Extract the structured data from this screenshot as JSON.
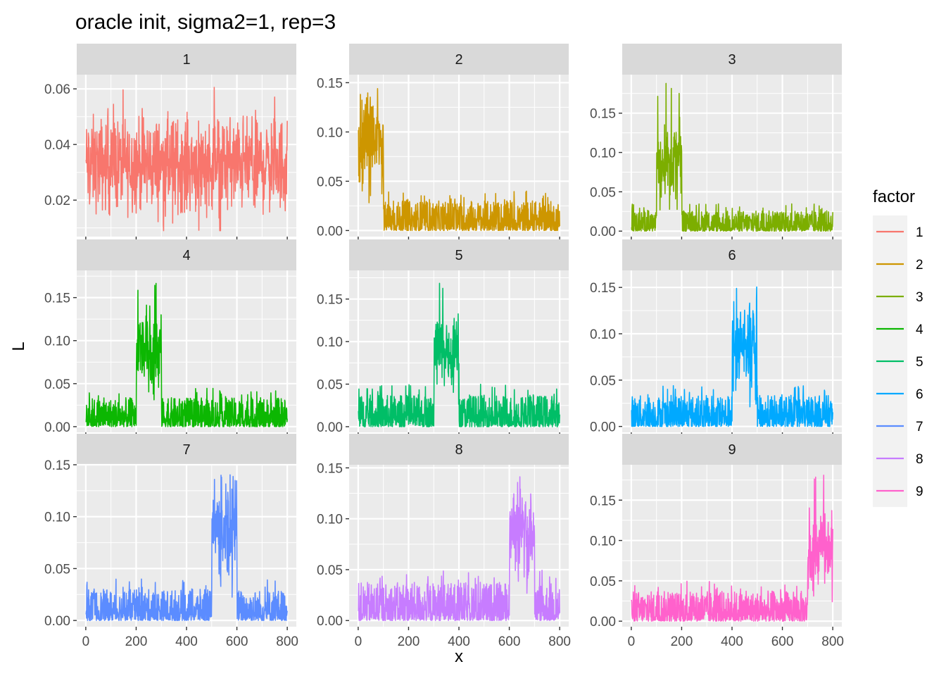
{
  "chart_data": {
    "type": "line",
    "title": "oracle init, sigma2=1, rep=3",
    "xlabel": "x",
    "ylabel": "L",
    "xlim": [
      0,
      800
    ],
    "x_ticks": [
      "0",
      "200",
      "400",
      "600",
      "800"
    ],
    "grid": true,
    "legend": {
      "title": "factor",
      "placement": "right",
      "entries": [
        "1",
        "2",
        "3",
        "4",
        "5",
        "6",
        "7",
        "8",
        "9"
      ]
    },
    "series_model": "noisy per-index loadings: baseline noise everywhere, elevated block over active_range",
    "panels": [
      {
        "name": "1",
        "color": "#F8766D",
        "ylim": [
          0.008,
          0.064
        ],
        "y_ticks": [
          0.02,
          0.04,
          0.06
        ],
        "y_tick_labels": [
          "0.02",
          "0.04",
          "0.06"
        ],
        "baseline_max": 0.05,
        "baseline_mean": 0.033,
        "active_range": null,
        "active_mean": null,
        "peak": 0.062
      },
      {
        "name": "2",
        "color": "#CD9600",
        "ylim": [
          -0.003,
          0.155
        ],
        "y_ticks": [
          0.0,
          0.05,
          0.1,
          0.15
        ],
        "y_tick_labels": [
          "0.00",
          "0.05",
          "0.10",
          "0.15"
        ],
        "baseline_max": 0.04,
        "baseline_mean": 0.01,
        "active_range": [
          0,
          100
        ],
        "active_mean": 0.09,
        "peak": 0.15
      },
      {
        "name": "3",
        "color": "#7CAE00",
        "ylim": [
          -0.003,
          0.195
        ],
        "y_ticks": [
          0.0,
          0.05,
          0.1,
          0.15
        ],
        "y_tick_labels": [
          "0.00",
          "0.05",
          "0.10",
          "0.15"
        ],
        "baseline_max": 0.035,
        "baseline_mean": 0.01,
        "active_range": [
          100,
          200
        ],
        "active_mean": 0.09,
        "peak": 0.19
      },
      {
        "name": "4",
        "color": "#0CB702",
        "ylim": [
          -0.003,
          0.178
        ],
        "y_ticks": [
          0.0,
          0.05,
          0.1,
          0.15
        ],
        "y_tick_labels": [
          "0.00",
          "0.05",
          "0.10",
          "0.15"
        ],
        "baseline_max": 0.045,
        "baseline_mean": 0.01,
        "active_range": [
          200,
          300
        ],
        "active_mean": 0.09,
        "peak": 0.175
      },
      {
        "name": "5",
        "color": "#00BE67",
        "ylim": [
          -0.003,
          0.18
        ],
        "y_ticks": [
          0.0,
          0.05,
          0.1,
          0.15
        ],
        "y_tick_labels": [
          "0.00",
          "0.05",
          "0.10",
          "0.15"
        ],
        "baseline_max": 0.05,
        "baseline_mean": 0.012,
        "active_range": [
          300,
          400
        ],
        "active_mean": 0.09,
        "peak": 0.178
      },
      {
        "name": "6",
        "color": "#00A9FF",
        "ylim": [
          -0.003,
          0.165
        ],
        "y_ticks": [
          0.0,
          0.05,
          0.1,
          0.15
        ],
        "y_tick_labels": [
          "0.00",
          "0.05",
          "0.10",
          "0.15"
        ],
        "baseline_max": 0.045,
        "baseline_mean": 0.01,
        "active_range": [
          400,
          500
        ],
        "active_mean": 0.09,
        "peak": 0.162
      },
      {
        "name": "7",
        "color": "#5B8CFF",
        "ylim": [
          -0.003,
          0.147
        ],
        "y_ticks": [
          0.0,
          0.05,
          0.1,
          0.15
        ],
        "y_tick_labels": [
          "0.00",
          "0.05",
          "0.10",
          "0.15"
        ],
        "baseline_max": 0.04,
        "baseline_mean": 0.01,
        "active_range": [
          500,
          600
        ],
        "active_mean": 0.09,
        "peak": 0.143
      },
      {
        "name": "8",
        "color": "#C77CFF",
        "ylim": [
          -0.003,
          0.15
        ],
        "y_ticks": [
          0.0,
          0.05,
          0.1,
          0.15
        ],
        "y_tick_labels": [
          "0.00",
          "0.05",
          "0.10",
          "0.15"
        ],
        "baseline_max": 0.05,
        "baseline_mean": 0.012,
        "active_range": [
          600,
          700
        ],
        "active_mean": 0.09,
        "peak": 0.147
      },
      {
        "name": "9",
        "color": "#FF61CC",
        "ylim": [
          -0.003,
          0.19
        ],
        "y_ticks": [
          0.0,
          0.05,
          0.1,
          0.15
        ],
        "y_tick_labels": [
          "0.00",
          "0.05",
          "0.10",
          "0.15"
        ],
        "baseline_max": 0.05,
        "baseline_mean": 0.012,
        "active_range": [
          700,
          800
        ],
        "active_mean": 0.09,
        "peak": 0.187
      }
    ]
  }
}
